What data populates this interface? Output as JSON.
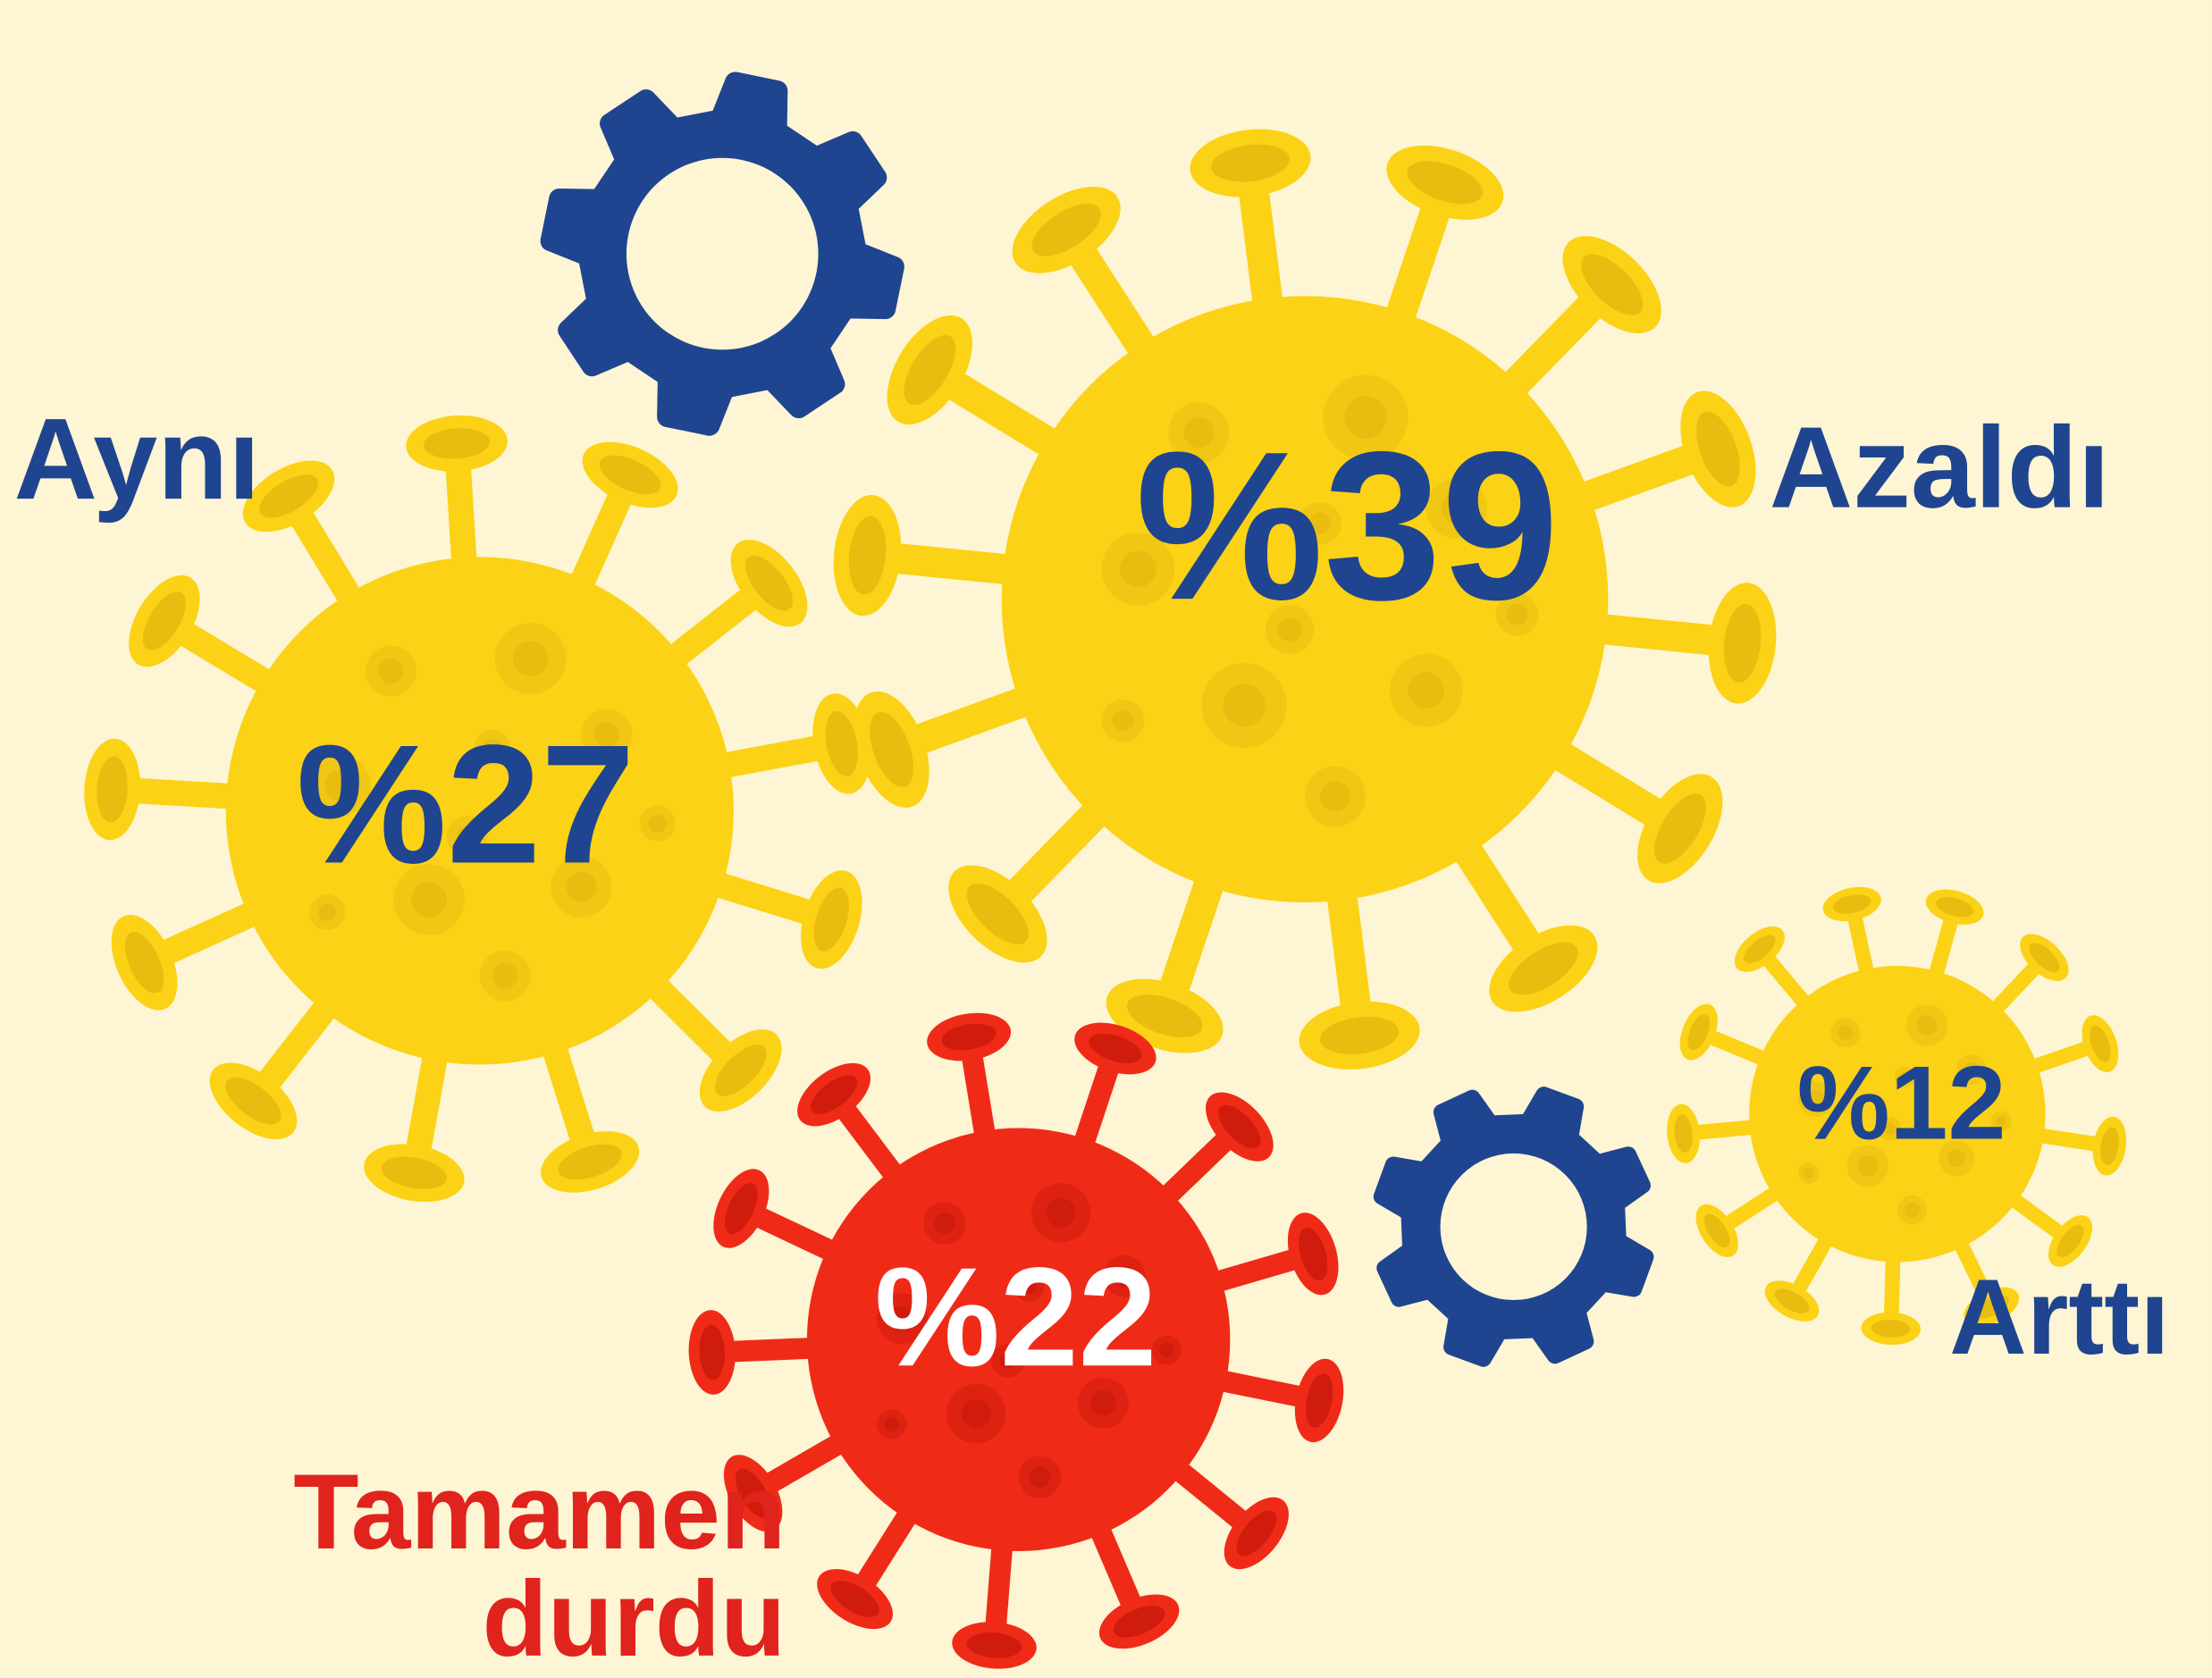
{
  "items": [
    {
      "label": [
        "Azaldı"
      ],
      "value": "%39"
    },
    {
      "label": [
        "Aynı"
      ],
      "value": "%27"
    },
    {
      "label": [
        "Tamamen",
        "durdu"
      ],
      "value": "%22"
    },
    {
      "label": [
        "Arttı"
      ],
      "value": "%12"
    }
  ]
}
